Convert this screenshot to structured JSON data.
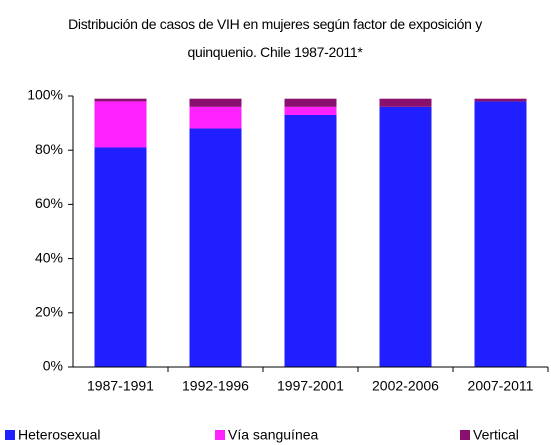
{
  "chart_data": {
    "type": "stacked_bar",
    "title": "Distribución de casos de VIH en mujeres según factor de exposición y quinquenio. Chile 1987-2011*",
    "categories": [
      "1987-1991",
      "1992-1996",
      "1997-2001",
      "2002-2006",
      "2007-2011"
    ],
    "series": [
      {
        "name": "Heterosexual",
        "color": "#1f1fff",
        "values": [
          81,
          88,
          93,
          96,
          98
        ]
      },
      {
        "name": "Vía sanguínea",
        "color": "#ff22ff",
        "values": [
          17,
          8,
          3,
          0,
          0
        ]
      },
      {
        "name": "Vertical",
        "color": "#8a1070",
        "values": [
          1,
          3,
          3,
          3,
          1
        ]
      }
    ],
    "ylim": [
      0,
      100
    ],
    "yticks": [
      {
        "value": 0,
        "label": "0%"
      },
      {
        "value": 20,
        "label": "20%"
      },
      {
        "value": 40,
        "label": "40%"
      },
      {
        "value": 60,
        "label": "60%"
      },
      {
        "value": 80,
        "label": "80%"
      },
      {
        "value": 100,
        "label": "100%"
      }
    ],
    "grid": false,
    "legend": "bottom"
  }
}
